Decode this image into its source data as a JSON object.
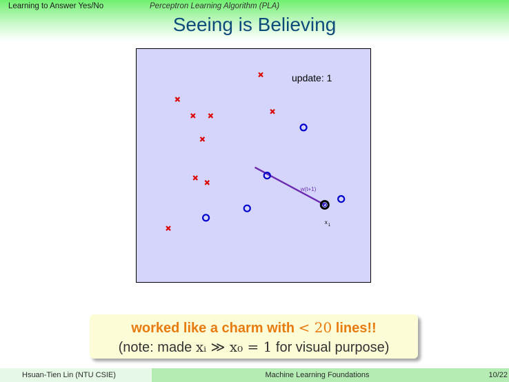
{
  "header": {
    "section": "Learning to Answer Yes/No",
    "subsection": "Perceptron Learning Algorithm (PLA)",
    "title": "Seeing is Believing"
  },
  "plot": {
    "update_label": "update: 1",
    "w_label": "w(t+1)",
    "x_label": "x",
    "x_subscript": "1",
    "colors": {
      "background": "#d5d5fb",
      "negative": "#dd0000",
      "positive": "#0000cc",
      "weight_vector": "#6a2bb0",
      "highlight": "#000000"
    },
    "negative_points": [
      [
        0.528,
        0.89
      ],
      [
        0.174,
        0.785
      ],
      [
        0.24,
        0.715
      ],
      [
        0.315,
        0.715
      ],
      [
        0.578,
        0.733
      ],
      [
        0.28,
        0.615
      ],
      [
        0.25,
        0.45
      ],
      [
        0.3,
        0.43
      ],
      [
        0.135,
        0.235
      ]
    ],
    "positive_points": [
      [
        0.71,
        0.665
      ],
      [
        0.555,
        0.46
      ],
      [
        0.87,
        0.36
      ],
      [
        0.47,
        0.32
      ],
      [
        0.295,
        0.28
      ]
    ],
    "highlighted_point": [
      0.8,
      0.335
    ],
    "weight_vector_tail": [
      0.503,
      0.495
    ]
  },
  "callout": {
    "line1_prefix": "worked like a charm with ",
    "line1_math": "< 20",
    "line1_suffix": " lines!!",
    "line2_prefix": "(note: made ",
    "line2_math": "xᵢ ≫ x₀ = 1",
    "line2_suffix": " for visual purpose)"
  },
  "footer": {
    "author": "Hsuan-Tien Lin  (NTU CSIE)",
    "course": "Machine Learning Foundations",
    "page": "10/22"
  }
}
